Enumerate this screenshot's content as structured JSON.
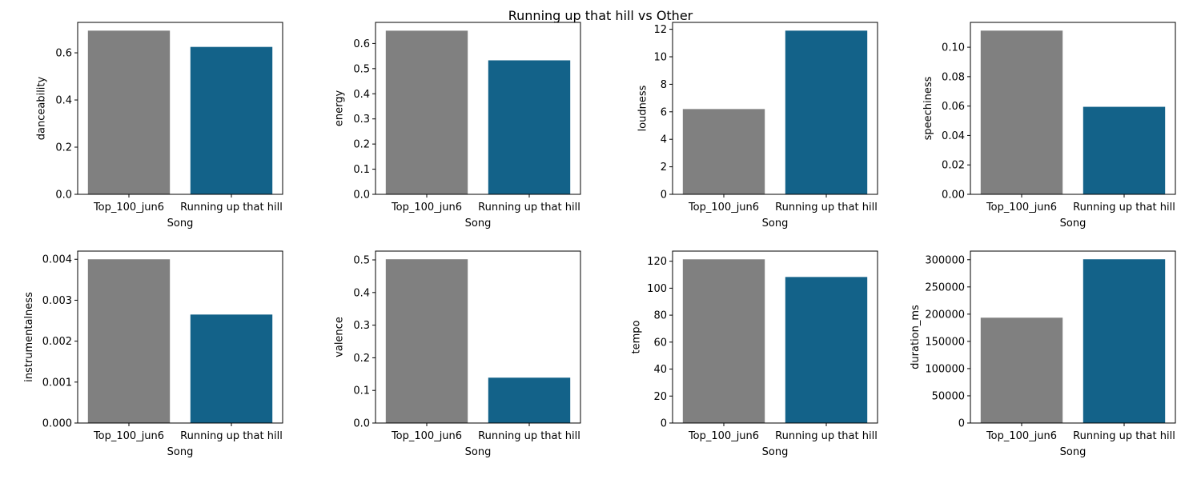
{
  "title": "Running up that hill vs Other",
  "colors": {
    "other": "#808080",
    "highlight": "#136289"
  },
  "chart_data": [
    {
      "type": "bar",
      "xlabel": "Song",
      "ylabel": "danceability",
      "categories": [
        "Top_100_jun6",
        "Running up that hill"
      ],
      "values": [
        0.694,
        0.625
      ],
      "ylim": [
        0,
        0.729
      ],
      "yticks": [
        "0.0",
        "0.2",
        "0.4",
        "0.6"
      ],
      "ytick_values": [
        0,
        0.2,
        0.4,
        0.6
      ]
    },
    {
      "type": "bar",
      "xlabel": "Song",
      "ylabel": "energy",
      "categories": [
        "Top_100_jun6",
        "Running up that hill"
      ],
      "values": [
        0.651,
        0.533
      ],
      "ylim": [
        0,
        0.684
      ],
      "yticks": [
        "0.0",
        "0.1",
        "0.2",
        "0.3",
        "0.4",
        "0.5",
        "0.6"
      ],
      "ytick_values": [
        0,
        0.1,
        0.2,
        0.3,
        0.4,
        0.5,
        0.6
      ]
    },
    {
      "type": "bar",
      "xlabel": "Song",
      "ylabel": "loudness",
      "categories": [
        "Top_100_jun6",
        "Running up that hill"
      ],
      "values": [
        6.2,
        11.9
      ],
      "ylim": [
        0,
        12.5
      ],
      "yticks": [
        "0",
        "2",
        "4",
        "6",
        "8",
        "10",
        "12"
      ],
      "ytick_values": [
        0,
        2,
        4,
        6,
        8,
        10,
        12
      ]
    },
    {
      "type": "bar",
      "xlabel": "Song",
      "ylabel": "speechiness",
      "categories": [
        "Top_100_jun6",
        "Running up that hill"
      ],
      "values": [
        0.1113,
        0.0595
      ],
      "ylim": [
        0,
        0.1169
      ],
      "yticks": [
        "0.00",
        "0.02",
        "0.04",
        "0.06",
        "0.08",
        "0.10"
      ],
      "ytick_values": [
        0,
        0.02,
        0.04,
        0.06,
        0.08,
        0.1
      ]
    },
    {
      "type": "bar",
      "xlabel": "Song",
      "ylabel": "instrumentalness",
      "categories": [
        "Top_100_jun6",
        "Running up that hill"
      ],
      "values": [
        0.004,
        0.00265
      ],
      "ylim": [
        0,
        0.0042
      ],
      "yticks": [
        "0.000",
        "0.001",
        "0.002",
        "0.003",
        "0.004"
      ],
      "ytick_values": [
        0,
        0.001,
        0.002,
        0.003,
        0.004
      ]
    },
    {
      "type": "bar",
      "xlabel": "Song",
      "ylabel": "valence",
      "categories": [
        "Top_100_jun6",
        "Running up that hill"
      ],
      "values": [
        0.502,
        0.139
      ],
      "ylim": [
        0,
        0.527
      ],
      "yticks": [
        "0.0",
        "0.1",
        "0.2",
        "0.3",
        "0.4",
        "0.5"
      ],
      "ytick_values": [
        0,
        0.1,
        0.2,
        0.3,
        0.4,
        0.5
      ]
    },
    {
      "type": "bar",
      "xlabel": "Song",
      "ylabel": "tempo",
      "categories": [
        "Top_100_jun6",
        "Running up that hill"
      ],
      "values": [
        121.4,
        108.3
      ],
      "ylim": [
        0,
        127.5
      ],
      "yticks": [
        "0",
        "20",
        "40",
        "60",
        "80",
        "100",
        "120"
      ],
      "ytick_values": [
        0,
        20,
        40,
        60,
        80,
        100,
        120
      ]
    },
    {
      "type": "bar",
      "xlabel": "Song",
      "ylabel": "duration_ms",
      "categories": [
        "Top_100_jun6",
        "Running up that hill"
      ],
      "values": [
        193500,
        300800
      ],
      "ylim": [
        0,
        315840
      ],
      "yticks": [
        "0",
        "50000",
        "100000",
        "150000",
        "200000",
        "250000",
        "300000"
      ],
      "ytick_values": [
        0,
        50000,
        100000,
        150000,
        200000,
        250000,
        300000
      ]
    }
  ]
}
